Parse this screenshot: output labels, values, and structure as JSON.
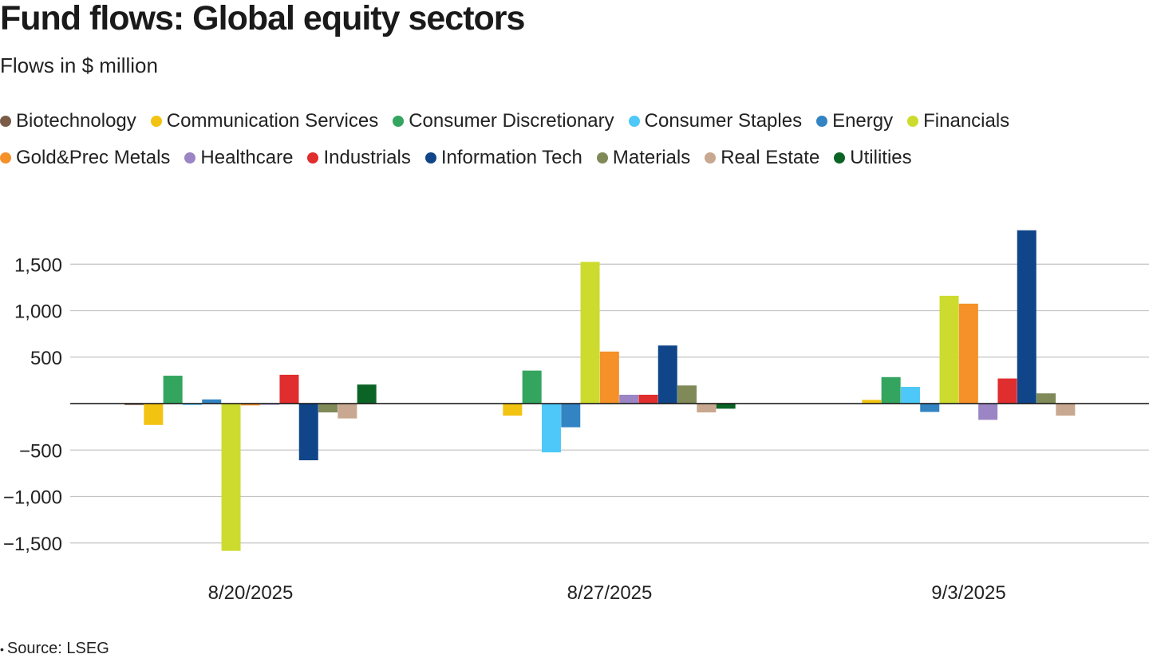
{
  "chart_data": {
    "type": "bar",
    "title": "Fund flows: Global equity sectors",
    "subtitle": "Flows in $ million",
    "xlabel": "",
    "ylabel": "",
    "categories": [
      "8/20/2025",
      "8/27/2025",
      "9/3/2025"
    ],
    "y_ticks": [
      1500,
      1000,
      500,
      -500,
      -1000,
      -1500
    ],
    "y_tick_labels": [
      "1,500",
      "1,000",
      "500",
      "−500",
      "−1,000",
      "−1,500"
    ],
    "ylim": [
      -1750,
      2000
    ],
    "grid": true,
    "legend_position": "top",
    "series": [
      {
        "name": "Biotechnology",
        "color": "#7a5c48",
        "values": [
          -15,
          0,
          0
        ]
      },
      {
        "name": "Communication Services",
        "color": "#f2c311",
        "values": [
          -230,
          -130,
          40
        ]
      },
      {
        "name": "Consumer Discretionary",
        "color": "#33a55e",
        "values": [
          300,
          355,
          285
        ]
      },
      {
        "name": "Consumer Staples",
        "color": "#4dc8f8",
        "values": [
          -15,
          -525,
          180
        ]
      },
      {
        "name": "Energy",
        "color": "#3384c2",
        "values": [
          45,
          -255,
          -90
        ]
      },
      {
        "name": "Financials",
        "color": "#cddb2e",
        "values": [
          -1585,
          1525,
          1160
        ]
      },
      {
        "name": "Gold&Prec Metals",
        "color": "#f59128",
        "values": [
          -20,
          560,
          1075
        ]
      },
      {
        "name": "Healthcare",
        "color": "#9b85c5",
        "values": [
          -10,
          95,
          -175
        ]
      },
      {
        "name": "Industrials",
        "color": "#e02d2d",
        "values": [
          310,
          95,
          270
        ]
      },
      {
        "name": "Information Tech",
        "color": "#104589",
        "values": [
          -610,
          625,
          1865
        ]
      },
      {
        "name": "Materials",
        "color": "#7f8a58",
        "values": [
          -95,
          195,
          110
        ]
      },
      {
        "name": "Real Estate",
        "color": "#c8a890",
        "values": [
          -160,
          -95,
          -130
        ]
      },
      {
        "name": "Utilities",
        "color": "#0b6426",
        "values": [
          205,
          -55,
          0
        ]
      }
    ],
    "source": "Source: LSEG"
  }
}
